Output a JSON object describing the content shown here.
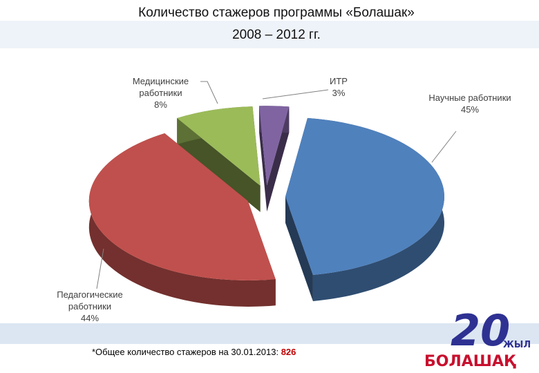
{
  "chart_data": {
    "type": "pie",
    "title": "Количество стажеров программы «Болашак»",
    "subtitle": "2008 – 2012 гг.",
    "categories": [
      "Научные работники",
      "Педагогические работники",
      "Медицинские работники",
      "ИТР"
    ],
    "values": [
      45,
      44,
      8,
      3
    ],
    "value_labels": [
      "45%",
      "44%",
      "8%",
      "3%"
    ],
    "colors": [
      "#4f81bd",
      "#c0504d",
      "#9bbb59",
      "#8064a2"
    ],
    "footnote": "*Общее количество стажеров на 30.01.2013:",
    "footnote_value": 826
  },
  "logo": {
    "number": "20",
    "word": "ЖЫЛ",
    "name": "БОЛАШАҚ"
  }
}
